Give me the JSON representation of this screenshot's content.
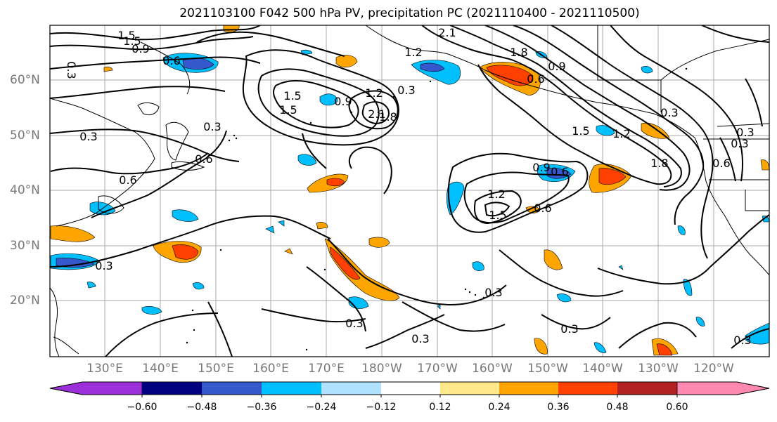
{
  "title": "2021103100 F042 500 hPa PV, precipitation PC (2021110400 - 2021110500)",
  "lat_labels": [
    "60°N",
    "50°N",
    "40°N",
    "30°N",
    "20°N"
  ],
  "lon_labels": [
    "130°E",
    "140°E",
    "150°E",
    "160°E",
    "170°E",
    "180°W",
    "170°W",
    "160°W",
    "150°W",
    "140°W",
    "130°W",
    "120°W"
  ],
  "colorbar": {
    "colors": [
      "#9b30d9",
      "#000080",
      "#3558cc",
      "#00bfff",
      "#b0e2ff",
      "#ffffff",
      "#ffe88a",
      "#ffa500",
      "#ff4000",
      "#b22222",
      "#ff88b0"
    ],
    "tick_labels": [
      "−0.60",
      "−0.48",
      "−0.36",
      "−0.24",
      "−0.12",
      "0.12",
      "0.24",
      "0.36",
      "0.48",
      "0.60"
    ]
  },
  "contour_labels": [
    "1.5",
    "1.5",
    "0.9",
    "0.6",
    "0.3",
    "2.1",
    "1.2",
    "1.8",
    "0.9",
    "1.5",
    "0.3",
    "0.3",
    "0.3",
    "0.9",
    "1.5",
    "1.2",
    "0.6",
    "0.6",
    "0.6",
    "1.8",
    "1.5",
    "1.2",
    "0.3",
    "1.8",
    "0.3",
    "0.6",
    "0.9",
    "1.2",
    "1.5",
    "0.6",
    "0.3",
    "0.3",
    "0.3",
    "0.3",
    "0.3",
    "0.3",
    "2.1",
    "0.3",
    "0.6"
  ]
}
